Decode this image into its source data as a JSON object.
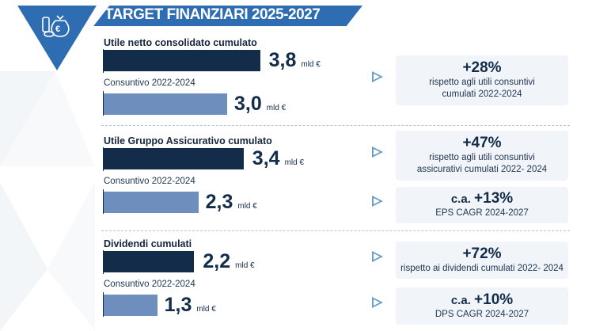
{
  "header": {
    "title": "TARGET FINANZIARI 2025-2027",
    "icon": "money-bag-euro-icon"
  },
  "sections": [
    {
      "label": "Utile netto consolidato cumulato",
      "target": {
        "value": "3,8",
        "unit": "mld €",
        "amount": 3.8
      },
      "actual": {
        "label": "Consuntivo 2022-2024",
        "value": "3,0",
        "unit": "mld €",
        "amount": 3.0
      }
    },
    {
      "label": "Utile Gruppo Assicurativo cumulato",
      "target": {
        "value": "3,4",
        "unit": "mld €",
        "amount": 3.4
      },
      "actual": {
        "label": "Consuntivo 2022-2024",
        "value": "2,3",
        "unit": "mld €",
        "amount": 2.3
      }
    },
    {
      "label": "Dividendi cumulati",
      "target": {
        "value": "2,2",
        "unit": "mld €",
        "amount": 2.2
      },
      "actual": {
        "label": "Consuntivo 2022-2024",
        "value": "1,3",
        "unit": "mld €",
        "amount": 1.3
      }
    }
  ],
  "boxes": [
    {
      "prefix": "",
      "big": "+28%",
      "line1": "rispetto agli utili consuntivi",
      "line2": "cumulati 2022-2024"
    },
    {
      "prefix": "",
      "big": "+47%",
      "line1": "rispetto agli utili consuntivi",
      "line2": "assicurativi cumulati 2022- 2024"
    },
    {
      "prefix": "c.a. ",
      "big": "+13%",
      "line1": "EPS CAGR 2024-2027",
      "line2": ""
    },
    {
      "prefix": "",
      "big": "+72%",
      "line1": "rispetto ai dividendi cumulati 2022- 2024",
      "line2": ""
    },
    {
      "prefix": "c.a. ",
      "big": "+10%",
      "line1": "DPS CAGR 2024-2027",
      "line2": ""
    }
  ]
}
